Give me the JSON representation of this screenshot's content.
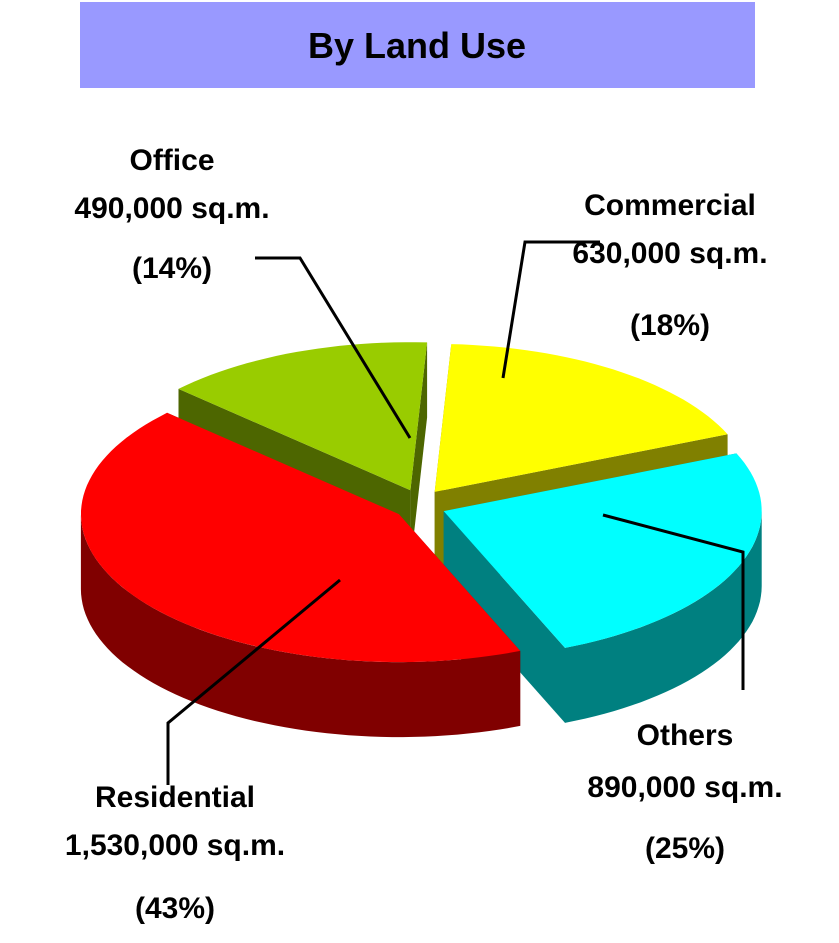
{
  "chart_data": {
    "type": "pie",
    "title": "By Land Use",
    "categories": [
      "Commercial",
      "Others",
      "Residential",
      "Office"
    ],
    "values": [
      630000,
      890000,
      1530000,
      490000
    ],
    "value_labels": [
      "630,000 sq.m.",
      "890,000 sq.m.",
      "1,530,000 sq.m.",
      "490,000 sq.m."
    ],
    "percent_labels": [
      "(18%)",
      "(25%)",
      "(43%)",
      "(14%)"
    ],
    "colors": [
      "#ffff00",
      "#00ffff",
      "#ff0000",
      "#99cc00"
    ]
  }
}
